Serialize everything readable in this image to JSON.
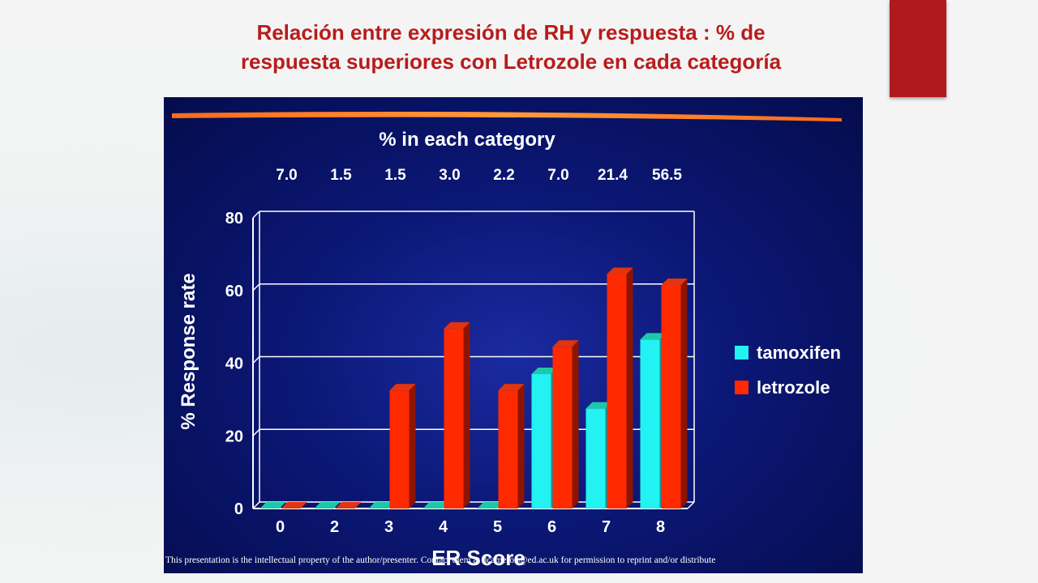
{
  "title": {
    "line1": "Relación entre expresión de RH y respuesta : % de",
    "line2": "respuesta superiores con Letrozole en cada categoría"
  },
  "colors": {
    "accent": "#b01a1e",
    "title": "#b81c1c",
    "panel": "#0b1775",
    "tamoxifen": "#22f2f2",
    "letrozole": "#ff2a00"
  },
  "chart_data": {
    "type": "bar",
    "categories": [
      "0",
      "2",
      "3",
      "4",
      "5",
      "6",
      "7",
      "8"
    ],
    "category_header": "% in each category",
    "category_percentages": [
      "7.0",
      "1.5",
      "1.5",
      "3.0",
      "2.2",
      "7.0",
      "21.4",
      "56.5"
    ],
    "series": [
      {
        "name": "tamoxifen",
        "values": [
          0,
          0,
          0,
          0,
          0,
          37,
          27.5,
          46.5
        ]
      },
      {
        "name": "letrozole",
        "values": [
          0,
          0,
          32.5,
          49.5,
          32.5,
          44.5,
          64.5,
          61.5
        ]
      }
    ],
    "xlabel": "ER Score",
    "ylabel": "% Response rate",
    "ylim": [
      0,
      80
    ],
    "yticks": [
      "0",
      "20",
      "40",
      "60",
      "80"
    ],
    "grid": true,
    "legend_position": "right",
    "footnote": "This presentation is the intellectual property of the author/presenter. Contact them at dcameron@ed.ac.uk  for permission to reprint and/or distribute"
  }
}
